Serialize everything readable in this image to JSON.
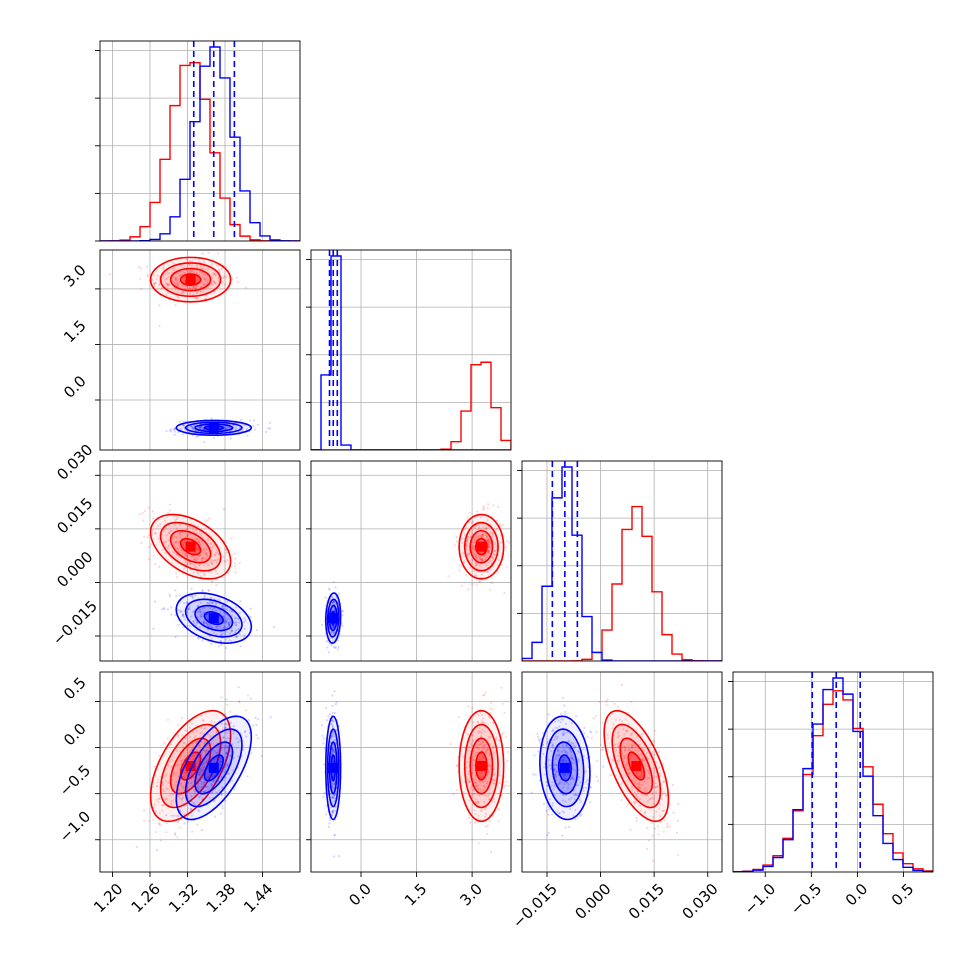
{
  "chart_data": {
    "type": "corner",
    "title": "",
    "parameters": [
      {
        "name": "",
        "range": [
          1.18,
          1.5
        ],
        "ticks": [
          1.2,
          1.26,
          1.32,
          1.38,
          1.44
        ],
        "tick_labels": [
          "1.20",
          "1.26",
          "1.32",
          "1.38",
          "1.44"
        ]
      },
      {
        "name": "",
        "range": [
          -1.35,
          4.05
        ],
        "ticks": [
          0.0,
          1.5,
          3.0
        ],
        "tick_labels": [
          "0.0",
          "1.5",
          "3.0"
        ]
      },
      {
        "name": "",
        "range": [
          -0.022,
          0.034
        ],
        "ticks": [
          -0.015,
          0.0,
          0.015,
          0.03
        ],
        "tick_labels": [
          "−0.015",
          "0.000",
          "0.015",
          "0.030"
        ]
      },
      {
        "name": "",
        "range": [
          -1.35,
          0.82
        ],
        "ticks": [
          -1.0,
          -0.5,
          0.0,
          0.5
        ],
        "tick_labels": [
          "−1.0",
          "−0.5",
          "0.0",
          "0.5"
        ]
      }
    ],
    "series": [
      {
        "color": "#ff0000",
        "means": [
          1.325,
          3.25,
          0.01,
          -0.2
        ],
        "stds": [
          0.032,
          0.3,
          0.0045,
          0.3
        ],
        "correlations": {
          "0-2": -0.45,
          "0-3": 0.55,
          "2-3": -0.6
        }
      },
      {
        "color": "#0000ff",
        "means": [
          1.362,
          -0.75,
          -0.01,
          -0.22
        ],
        "stds": [
          0.03,
          0.1,
          0.0035,
          0.28
        ],
        "correlations": {
          "0-2": -0.35,
          "0-3": 0.6,
          "1-2": 0.1,
          "2-3": -0.1
        }
      }
    ],
    "quantile_lines": {
      "color": "#0000ff",
      "style": "dashed",
      "values": [
        [
          1.33,
          1.362,
          1.395
        ],
        [
          -0.85,
          -0.75,
          -0.64
        ],
        [
          -0.0135,
          -0.01,
          -0.0065
        ],
        [
          -0.49,
          -0.23,
          0.03
        ]
      ]
    },
    "contour_levels_sigma": [
      0.5,
      1.0,
      1.5,
      2.0
    ],
    "grid": true
  }
}
